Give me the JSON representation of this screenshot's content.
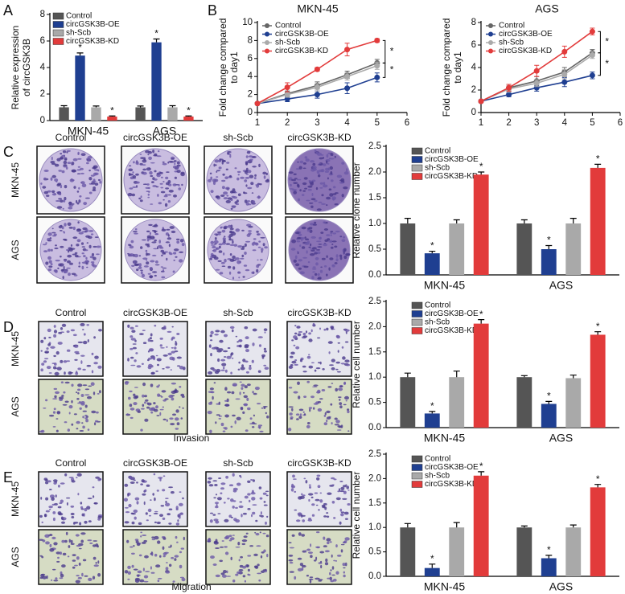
{
  "figure": {
    "panel_labels": [
      "A",
      "B",
      "C",
      "D",
      "E"
    ],
    "image_panels": [
      {
        "columns": [
          "Control",
          "circGSK3B-OE",
          "sh-Scb",
          "circGSK3B-KD"
        ],
        "rows": [
          "MKN-45",
          "AGS"
        ]
      },
      {
        "columns": [
          "Control",
          "circGSK3B-OE",
          "sh-Scb",
          "circGSK3B-KD"
        ],
        "rows": [
          "MKN-45",
          "AGS"
        ],
        "caption": "Invasion"
      },
      {
        "columns": [
          "Control",
          "circGSK3B-OE",
          "sh-Scb",
          "circGSK3B-KD"
        ],
        "rows": [
          "MKN-45",
          "AGS"
        ],
        "caption": "Migration"
      }
    ]
  },
  "chart_data": [
    {
      "type": "bar",
      "ylabel": [
        "Relative expression",
        "of circGSK3B"
      ],
      "categories": [
        "MKN-45",
        "AGS"
      ],
      "ylim": [
        0,
        8
      ],
      "yticks": [
        0,
        2,
        4,
        6,
        8
      ],
      "series": [
        {
          "name": "Control",
          "color": "#555555",
          "values": [
            1.0,
            1.0
          ],
          "errors": [
            0.12,
            0.1
          ]
        },
        {
          "name": "circGSK3B-OE",
          "color": "#1f3f91",
          "values": [
            4.9,
            5.9
          ],
          "errors": [
            0.2,
            0.25
          ],
          "significance": [
            "*",
            "*"
          ]
        },
        {
          "name": "sh-Scb",
          "color": "#a9a9a9",
          "values": [
            1.0,
            1.0
          ],
          "errors": [
            0.1,
            0.12
          ]
        },
        {
          "name": "circGSK3B-KD",
          "color": "#e23b3b",
          "values": [
            0.3,
            0.3
          ],
          "errors": [
            0.05,
            0.05
          ],
          "significance": [
            "*",
            "*"
          ]
        }
      ]
    },
    {
      "type": "line",
      "title": "MKN-45",
      "ylabel": [
        "Fold change compared",
        "to day1"
      ],
      "x": [
        1,
        2,
        3,
        4,
        5
      ],
      "xlim": [
        1,
        6
      ],
      "xticks": [
        1,
        2,
        3,
        4,
        5,
        6
      ],
      "ylim": [
        0,
        10
      ],
      "yticks": [
        0,
        2,
        4,
        6,
        8,
        10
      ],
      "annotations": [
        "*",
        "*"
      ],
      "series": [
        {
          "name": "Control",
          "color": "#666666",
          "values": [
            1,
            2.1,
            3.0,
            4.2,
            5.5
          ],
          "errors": [
            0,
            0.3,
            0.4,
            0.4,
            0.4
          ]
        },
        {
          "name": "circGSK3B-OE",
          "color": "#1f3f91",
          "values": [
            1,
            1.5,
            2.0,
            2.7,
            3.9
          ],
          "errors": [
            0,
            0.3,
            0.4,
            0.6,
            0.5
          ]
        },
        {
          "name": "sh-Scb",
          "color": "#aaaaaa",
          "values": [
            1,
            2.0,
            2.8,
            4.0,
            5.2
          ],
          "errors": [
            0,
            0.3,
            0.4,
            0.4,
            0.4
          ]
        },
        {
          "name": "circGSK3B-KD",
          "color": "#e23b3b",
          "values": [
            1,
            2.8,
            4.8,
            7.0,
            8.0
          ],
          "errors": [
            0,
            0.5,
            0.2,
            0.7,
            0.2
          ]
        }
      ]
    },
    {
      "type": "line",
      "title": "AGS",
      "ylabel": [
        "Fold change compared",
        "to day1"
      ],
      "x": [
        1,
        2,
        3,
        4,
        5
      ],
      "xlim": [
        1,
        6
      ],
      "xticks": [
        1,
        2,
        3,
        4,
        5,
        6
      ],
      "ylim": [
        0,
        8
      ],
      "yticks": [
        0,
        2,
        4,
        6,
        8
      ],
      "annotations": [
        "*",
        "*"
      ],
      "series": [
        {
          "name": "Control",
          "color": "#666666",
          "values": [
            1,
            2.2,
            2.8,
            3.6,
            5.3
          ],
          "errors": [
            0,
            0.3,
            0.4,
            0.4,
            0.3
          ]
        },
        {
          "name": "circGSK3B-OE",
          "color": "#1f3f91",
          "values": [
            1,
            1.6,
            2.2,
            2.7,
            3.3
          ],
          "errors": [
            0,
            0.2,
            0.3,
            0.4,
            0.3
          ]
        },
        {
          "name": "sh-Scb",
          "color": "#aaaaaa",
          "values": [
            1,
            2.1,
            2.6,
            3.4,
            5.1
          ],
          "errors": [
            0,
            0.3,
            0.3,
            0.4,
            0.3
          ]
        },
        {
          "name": "circGSK3B-KD",
          "color": "#e23b3b",
          "values": [
            1,
            2.2,
            3.7,
            5.4,
            7.2
          ],
          "errors": [
            0,
            0.3,
            0.5,
            0.5,
            0.3
          ]
        }
      ]
    },
    {
      "type": "bar",
      "ylabel": "Relative clone number",
      "categories": [
        "MKN-45",
        "AGS"
      ],
      "ylim": [
        0,
        2.5
      ],
      "yticks": [
        {
          "value": 0,
          "label": "0.0"
        },
        {
          "value": 0.5,
          "label": "0.5"
        },
        {
          "value": 1,
          "label": "1.0"
        },
        {
          "value": 1.5,
          "label": "1.5"
        },
        {
          "value": 2,
          "label": "2.0"
        },
        {
          "value": 2.5,
          "label": "2.5"
        }
      ],
      "series": [
        {
          "name": "Control",
          "color": "#555555",
          "values": [
            1.0,
            1.0
          ],
          "errors": [
            0.1,
            0.07
          ]
        },
        {
          "name": "circGSK3B-OE",
          "color": "#1f3f91",
          "values": [
            0.42,
            0.5
          ],
          "errors": [
            0.04,
            0.07
          ],
          "significance": [
            "*",
            "*"
          ]
        },
        {
          "name": "sh-Scb",
          "color": "#a9a9a9",
          "values": [
            1.0,
            1.0
          ],
          "errors": [
            0.07,
            0.1
          ]
        },
        {
          "name": "circGSK3B-KD",
          "color": "#e23b3b",
          "values": [
            1.95,
            2.08
          ],
          "errors": [
            0.05,
            0.07
          ],
          "significance": [
            "*",
            "*"
          ]
        }
      ]
    },
    {
      "type": "bar",
      "ylabel": "Relative cell number",
      "categories": [
        "MKN-45",
        "AGS"
      ],
      "ylim": [
        0,
        2.5
      ],
      "yticks": [
        {
          "value": 0,
          "label": "0.0"
        },
        {
          "value": 0.5,
          "label": "0.5"
        },
        {
          "value": 1,
          "label": "1.0"
        },
        {
          "value": 1.5,
          "label": "1.5"
        },
        {
          "value": 2,
          "label": "2.0"
        },
        {
          "value": 2.5,
          "label": "2.5"
        }
      ],
      "series": [
        {
          "name": "Control",
          "color": "#555555",
          "values": [
            1.0,
            1.0
          ],
          "errors": [
            0.08,
            0.03
          ]
        },
        {
          "name": "circGSK3B-OE",
          "color": "#1f3f91",
          "values": [
            0.28,
            0.47
          ],
          "errors": [
            0.04,
            0.05
          ],
          "significance": [
            "*",
            "*"
          ]
        },
        {
          "name": "sh-Scb",
          "color": "#a9a9a9",
          "values": [
            1.0,
            0.98
          ],
          "errors": [
            0.12,
            0.06
          ]
        },
        {
          "name": "circGSK3B-KD",
          "color": "#e23b3b",
          "values": [
            2.06,
            1.84
          ],
          "errors": [
            0.08,
            0.06
          ],
          "significance": [
            "*",
            "*"
          ]
        }
      ]
    },
    {
      "type": "bar",
      "ylabel": "Relative cell number",
      "categories": [
        "MKN-45",
        "AGS"
      ],
      "ylim": [
        0,
        2.5
      ],
      "yticks": [
        {
          "value": 0,
          "label": "0.0"
        },
        {
          "value": 0.5,
          "label": "0.5"
        },
        {
          "value": 1,
          "label": "1.0"
        },
        {
          "value": 1.5,
          "label": "1.5"
        },
        {
          "value": 2,
          "label": "2.0"
        },
        {
          "value": 2.5,
          "label": "2.5"
        }
      ],
      "series": [
        {
          "name": "Control",
          "color": "#555555",
          "values": [
            1.0,
            1.0
          ],
          "errors": [
            0.08,
            0.03
          ]
        },
        {
          "name": "circGSK3B-OE",
          "color": "#1f3f91",
          "values": [
            0.17,
            0.37
          ],
          "errors": [
            0.08,
            0.06
          ],
          "significance": [
            "*",
            "*"
          ]
        },
        {
          "name": "sh-Scb",
          "color": "#a9a9a9",
          "values": [
            1.0,
            1.0
          ],
          "errors": [
            0.1,
            0.05
          ]
        },
        {
          "name": "circGSK3B-KD",
          "color": "#e23b3b",
          "values": [
            2.06,
            1.82
          ],
          "errors": [
            0.08,
            0.06
          ],
          "significance": [
            "*",
            "*"
          ]
        }
      ]
    }
  ]
}
